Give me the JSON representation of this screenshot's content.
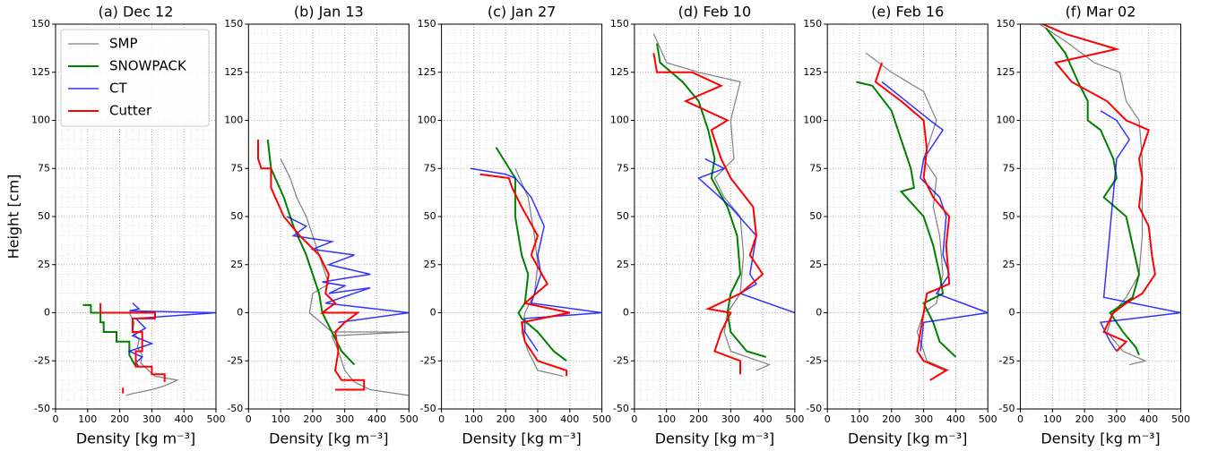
{
  "chart_data": [
    {
      "type": "line",
      "title": "(a) Dec 12",
      "xlabel": "Density [kg m⁻³]",
      "ylabel": "Height [cm]",
      "legend": "upper left",
      "xlim": [
        0,
        500
      ],
      "xticks": [
        0,
        100,
        200,
        300,
        400,
        500
      ],
      "ylim": [
        -50,
        150
      ],
      "yticks": [
        -50,
        -25,
        0,
        25,
        50,
        75,
        100,
        125,
        150
      ],
      "grid": true,
      "xminor": 20,
      "yminor": 5,
      "series": [
        {
          "name": "SMP",
          "color": "#808080",
          "x": [
            230,
            245,
            240,
            260,
            255,
            270,
            265,
            290,
            310,
            380,
            340,
            300,
            240,
            220
          ],
          "y": [
            0,
            -5,
            -10,
            -14,
            -18,
            -22,
            -26,
            -30,
            -33,
            -35,
            -38,
            -40,
            -42,
            -43
          ]
        },
        {
          "name": "SNOWPACK",
          "color": "#008000",
          "x": [
            85,
            110,
            110,
            140,
            140,
            150,
            150,
            190,
            190,
            230,
            230,
            250
          ],
          "y": [
            4,
            4,
            0,
            0,
            -5,
            -5,
            -10,
            -10,
            -15,
            -15,
            -22,
            -28
          ]
        },
        {
          "name": "CT",
          "color": "#0000ff",
          "x": [
            240,
            260,
            230,
            500,
            250,
            280,
            240,
            300,
            230,
            270,
            250,
            260
          ],
          "y": [
            5,
            2,
            1,
            0,
            -3,
            -8,
            -12,
            -16,
            -20,
            -23,
            -26,
            -28
          ]
        },
        {
          "name": "Cutter",
          "color": "#ff0000",
          "x": [
            140,
            140,
            310,
            310,
            240,
            240,
            270,
            270,
            250,
            250,
            300,
            300,
            340,
            340,
            null,
            210,
            210
          ],
          "y": [
            5,
            0,
            0,
            -3,
            -3,
            -10,
            -10,
            -20,
            -20,
            -28,
            -28,
            -32,
            -32,
            -36,
            null,
            -39,
            -42
          ]
        }
      ]
    },
    {
      "type": "line",
      "title": "(b) Jan 13",
      "xlabel": "Density [kg m⁻³]",
      "xlim": [
        0,
        500
      ],
      "xticks": [
        0,
        100,
        200,
        300,
        400,
        500
      ],
      "ylim": [
        -50,
        150
      ],
      "yticks": [
        -50,
        -25,
        0,
        25,
        50,
        75,
        100,
        125,
        150
      ],
      "grid": true,
      "xminor": 20,
      "yminor": 5,
      "series": [
        {
          "color": "#808080",
          "x": [
            100,
            130,
            150,
            180,
            200,
            230,
            250,
            200,
            190,
            260,
            500,
            260,
            280,
            300,
            330,
            380,
            500
          ],
          "y": [
            80,
            70,
            60,
            50,
            40,
            25,
            15,
            10,
            0,
            -10,
            -10,
            -12,
            -20,
            -30,
            -36,
            -40,
            -43
          ]
        },
        {
          "color": "#008000",
          "x": [
            60,
            70,
            110,
            140,
            180,
            200,
            220,
            230,
            260,
            290,
            330
          ],
          "y": [
            90,
            75,
            60,
            45,
            30,
            20,
            10,
            0,
            -10,
            -20,
            -27
          ]
        },
        {
          "color": "#0000ff",
          "x": [
            120,
            180,
            140,
            260,
            200,
            330,
            250,
            380,
            230,
            300,
            250,
            380,
            240,
            500,
            280
          ],
          "y": [
            50,
            45,
            40,
            37,
            33,
            30,
            25,
            20,
            16,
            14,
            10,
            13,
            5,
            0,
            -5
          ]
        },
        {
          "color": "#ff0000",
          "x": [
            30,
            30,
            40,
            70,
            70,
            110,
            160,
            220,
            250,
            240,
            270,
            230,
            340,
            300,
            270,
            280,
            270,
            290,
            360,
            360,
            270
          ],
          "y": [
            90,
            80,
            75,
            75,
            65,
            50,
            40,
            30,
            20,
            10,
            5,
            0,
            0,
            -5,
            -10,
            -20,
            -30,
            -35,
            -35,
            -40,
            -40
          ]
        }
      ]
    },
    {
      "type": "line",
      "title": "(c) Jan 27",
      "xlabel": "Density [kg m⁻³]",
      "xlim": [
        0,
        500
      ],
      "xticks": [
        0,
        100,
        200,
        300,
        400,
        500
      ],
      "ylim": [
        -50,
        150
      ],
      "yticks": [
        -50,
        -25,
        0,
        25,
        50,
        75,
        100,
        125,
        150
      ],
      "grid": true,
      "xminor": 20,
      "yminor": 5,
      "series": [
        {
          "color": "#808080",
          "x": [
            230,
            270,
            290,
            300,
            290,
            260,
            250,
            270,
            300,
            380
          ],
          "y": [
            75,
            60,
            40,
            25,
            10,
            0,
            -10,
            -20,
            -30,
            -33
          ]
        },
        {
          "color": "#008000",
          "x": [
            170,
            230,
            230,
            250,
            270,
            260,
            240,
            250,
            300,
            350,
            390
          ],
          "y": [
            86,
            70,
            50,
            30,
            20,
            5,
            0,
            -3,
            -10,
            -20,
            -25
          ]
        },
        {
          "color": "#0000ff",
          "x": [
            90,
            200,
            230,
            280,
            320,
            300,
            310,
            280,
            500,
            260,
            260,
            300
          ],
          "y": [
            75,
            72,
            70,
            60,
            45,
            30,
            20,
            5,
            0,
            -3,
            -10,
            -20
          ]
        },
        {
          "color": "#ff0000",
          "x": [
            120,
            210,
            220,
            250,
            300,
            280,
            330,
            260,
            400,
            250,
            260,
            300,
            390,
            390
          ],
          "y": [
            72,
            70,
            65,
            55,
            40,
            30,
            15,
            5,
            0,
            -5,
            -15,
            -25,
            -30,
            -33
          ]
        }
      ]
    },
    {
      "type": "line",
      "title": "(d) Feb 10",
      "xlabel": "Density [kg m⁻³]",
      "xlim": [
        0,
        500
      ],
      "xticks": [
        0,
        100,
        200,
        300,
        400,
        500
      ],
      "ylim": [
        -50,
        150
      ],
      "yticks": [
        -50,
        -25,
        0,
        25,
        50,
        75,
        100,
        125,
        150
      ],
      "grid": true,
      "xminor": 20,
      "yminor": 5,
      "series": [
        {
          "color": "#808080",
          "x": [
            60,
            100,
            200,
            330,
            300,
            310,
            250,
            280,
            330,
            340,
            330,
            290,
            280,
            300,
            420,
            380
          ],
          "y": [
            145,
            130,
            125,
            120,
            100,
            80,
            70,
            60,
            50,
            30,
            10,
            0,
            -10,
            -20,
            -27,
            -30
          ]
        },
        {
          "color": "#008000",
          "x": [
            70,
            80,
            150,
            200,
            230,
            250,
            240,
            290,
            320,
            330,
            300,
            290,
            300,
            350,
            410
          ],
          "y": [
            140,
            130,
            120,
            110,
            95,
            80,
            70,
            55,
            40,
            20,
            10,
            0,
            -10,
            -20,
            -23
          ]
        },
        {
          "color": "#0000ff",
          "x": [
            220,
            280,
            200,
            300,
            380,
            360,
            380,
            330,
            500
          ],
          "y": [
            80,
            75,
            70,
            55,
            40,
            20,
            15,
            10,
            0
          ]
        },
        {
          "color": "#ff0000",
          "x": [
            60,
            70,
            180,
            270,
            160,
            290,
            240,
            270,
            300,
            370,
            380,
            360,
            400,
            330,
            230,
            300,
            270,
            250,
            330,
            330
          ],
          "y": [
            135,
            125,
            125,
            118,
            110,
            100,
            95,
            80,
            70,
            55,
            40,
            30,
            20,
            10,
            2,
            0,
            -10,
            -20,
            -25,
            -32
          ]
        }
      ]
    },
    {
      "type": "line",
      "title": "(e) Feb 16",
      "xlabel": "Density [kg m⁻³]",
      "xlim": [
        0,
        500
      ],
      "xticks": [
        0,
        100,
        200,
        300,
        400,
        500
      ],
      "ylim": [
        -50,
        150
      ],
      "yticks": [
        -50,
        -25,
        0,
        25,
        50,
        75,
        100,
        125,
        150
      ],
      "grid": true,
      "xminor": 20,
      "yminor": 5,
      "series": [
        {
          "color": "#808080",
          "x": [
            120,
            200,
            300,
            340,
            300,
            340,
            330,
            350,
            360,
            340,
            300,
            280,
            310,
            380
          ],
          "y": [
            135,
            125,
            115,
            100,
            80,
            70,
            55,
            40,
            20,
            5,
            0,
            -10,
            -25,
            -30
          ]
        },
        {
          "color": "#008000",
          "x": [
            90,
            140,
            200,
            230,
            260,
            270,
            230,
            300,
            330,
            350,
            360,
            300,
            330,
            350,
            400
          ],
          "y": [
            120,
            118,
            105,
            90,
            75,
            65,
            63,
            50,
            35,
            20,
            10,
            5,
            -5,
            -15,
            -23
          ]
        },
        {
          "color": "#0000ff",
          "x": [
            170,
            320,
            360,
            300,
            290,
            350,
            370,
            360,
            380,
            340,
            500,
            300,
            290
          ],
          "y": [
            120,
            100,
            95,
            80,
            70,
            60,
            50,
            30,
            20,
            10,
            0,
            -5,
            -20
          ]
        },
        {
          "color": "#ff0000",
          "x": [
            170,
            150,
            230,
            300,
            310,
            300,
            330,
            380,
            370,
            380,
            310,
            300,
            290,
            280,
            300,
            370,
            320
          ],
          "y": [
            130,
            120,
            110,
            100,
            85,
            70,
            60,
            50,
            35,
            15,
            10,
            0,
            -10,
            -20,
            -25,
            -30,
            -35
          ]
        }
      ]
    },
    {
      "type": "line",
      "title": "(f) Mar 02",
      "xlabel": "Density [kg m⁻³]",
      "xlim": [
        0,
        500
      ],
      "xticks": [
        0,
        100,
        200,
        300,
        400,
        500
      ],
      "ylim": [
        -50,
        150
      ],
      "yticks": [
        -50,
        -25,
        0,
        25,
        50,
        75,
        100,
        125,
        150
      ],
      "grid": true,
      "xminor": 20,
      "yminor": 5,
      "series": [
        {
          "color": "#808080",
          "x": [
            60,
            150,
            230,
            310,
            330,
            370,
            380,
            380,
            380,
            370,
            330,
            290,
            270,
            320,
            390,
            340
          ],
          "y": [
            150,
            140,
            130,
            125,
            110,
            100,
            80,
            60,
            40,
            20,
            8,
            0,
            -10,
            -20,
            -25,
            -27
          ]
        },
        {
          "color": "#008000",
          "x": [
            80,
            140,
            180,
            210,
            210,
            250,
            290,
            300,
            260,
            330,
            350,
            370,
            350,
            280,
            320,
            360,
            370
          ],
          "y": [
            148,
            135,
            120,
            110,
            100,
            95,
            80,
            70,
            60,
            50,
            35,
            20,
            8,
            0,
            -10,
            -18,
            -22
          ]
        },
        {
          "color": "#0000ff",
          "x": [
            250,
            300,
            340,
            300,
            260,
            500,
            250,
            280,
            300
          ],
          "y": [
            105,
            100,
            90,
            80,
            8,
            0,
            -5,
            -15,
            -20
          ]
        },
        {
          "color": "#ff0000",
          "x": [
            70,
            140,
            300,
            110,
            160,
            270,
            330,
            400,
            370,
            380,
            370,
            400,
            410,
            420,
            380,
            330,
            290,
            260,
            330,
            300
          ],
          "y": [
            150,
            145,
            137,
            130,
            120,
            110,
            100,
            95,
            80,
            70,
            55,
            45,
            30,
            20,
            10,
            5,
            0,
            -10,
            -15,
            -20
          ]
        }
      ]
    }
  ]
}
